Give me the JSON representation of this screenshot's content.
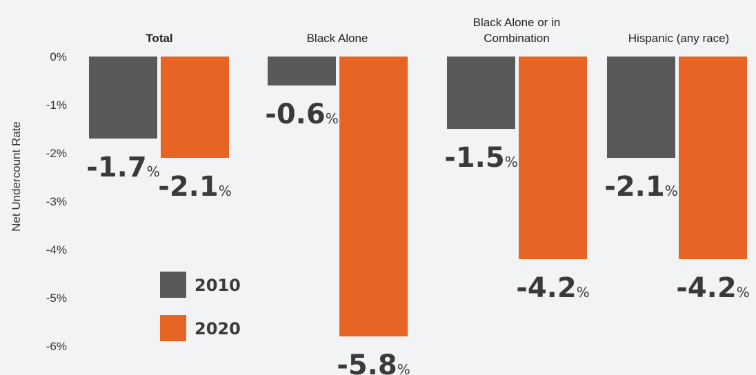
{
  "chart_data": {
    "type": "bar",
    "title": "",
    "xlabel": "",
    "ylabel": "Net Undercount Rate",
    "ylim": [
      -6,
      0
    ],
    "yticks": [
      0,
      -1,
      -2,
      -3,
      -4,
      -5,
      -6
    ],
    "ytick_labels": [
      "0%",
      "-1%",
      "-2%",
      "-3%",
      "-4%",
      "-5%",
      "-6%"
    ],
    "categories": [
      {
        "lines": [
          "Total"
        ],
        "bold": true
      },
      {
        "lines": [
          "Black Alone"
        ],
        "bold": false
      },
      {
        "lines": [
          "Black Alone or in",
          "Combination"
        ],
        "bold": false
      },
      {
        "lines": [
          "Hispanic (any race)"
        ],
        "bold": false
      }
    ],
    "series": [
      {
        "name": "2010",
        "color": "#595959",
        "values": [
          -1.7,
          -0.6,
          -1.5,
          -2.1
        ],
        "labels": [
          "-1.7",
          "-0.6",
          "-1.5",
          "-2.1"
        ]
      },
      {
        "name": "2020",
        "color": "#e86424",
        "values": [
          -2.1,
          -5.8,
          -4.2,
          -4.2
        ],
        "labels": [
          "-2.1",
          "-5.8",
          "-4.2",
          "-4.2"
        ]
      }
    ],
    "value_suffix": "%",
    "legend_position": "lower-left",
    "grid": false
  }
}
